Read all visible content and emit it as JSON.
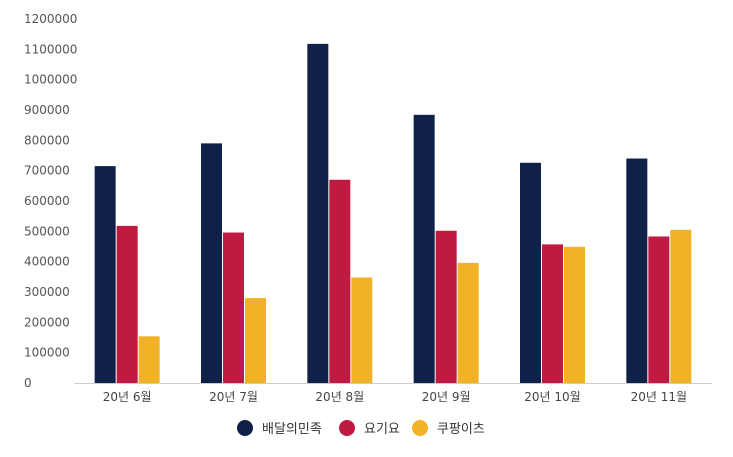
{
  "chart_data": {
    "type": "bar",
    "categories": [
      "20년 6월",
      "20년 7월",
      "20년 8월",
      "20년 9월",
      "20년 10월",
      "20년 11월"
    ],
    "series": [
      {
        "name": "배달의민족",
        "color": "#0f2148",
        "values": [
          715000,
          790000,
          1118000,
          884000,
          726000,
          740000
        ]
      },
      {
        "name": "요기요",
        "color": "#bf1a41",
        "values": [
          518000,
          496000,
          670000,
          502000,
          457000,
          483000
        ]
      },
      {
        "name": "쿠팡이츠",
        "color": "#f2b228",
        "values": [
          154000,
          280000,
          348000,
          396000,
          449000,
          505000
        ]
      }
    ],
    "yticks": [
      "0",
      "100000",
      "200000",
      "300000",
      "400000",
      "500000",
      "600000",
      "700000",
      "800000",
      "900000",
      "1000000",
      "1100000",
      "1200000"
    ],
    "ylim": [
      0,
      1200000
    ],
    "grid": false,
    "legend_position": "bottom-center",
    "title": "",
    "xlabel": "",
    "ylabel": ""
  }
}
